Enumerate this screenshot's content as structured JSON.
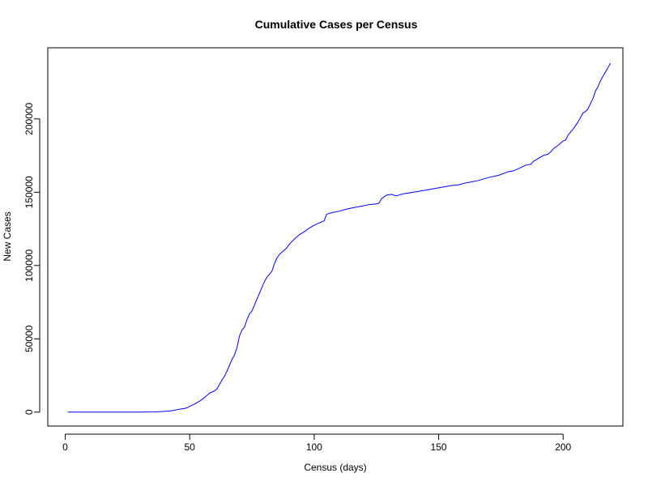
{
  "chart_data": {
    "type": "line",
    "title": "Cumulative Cases per Census",
    "xlabel": "Census (days)",
    "ylabel": "New Cases",
    "xlim": [
      -7,
      224
    ],
    "ylim": [
      -9500,
      248500
    ],
    "x_ticks": [
      0,
      50,
      100,
      150,
      200
    ],
    "x_tick_labels": [
      "0",
      "50",
      "100",
      "150",
      "200"
    ],
    "y_ticks": [
      0,
      50000,
      100000,
      150000,
      200000
    ],
    "y_tick_labels": [
      "0",
      "50000",
      "100000",
      "150000",
      "200000"
    ],
    "grid": false,
    "series": [
      {
        "color": "#0000ff",
        "points": [
          [
            1,
            0
          ],
          [
            10,
            0
          ],
          [
            20,
            0
          ],
          [
            30,
            0
          ],
          [
            36,
            200
          ],
          [
            40,
            500
          ],
          [
            43,
            1000
          ],
          [
            46,
            2000
          ],
          [
            48,
            2500
          ],
          [
            49,
            3000
          ],
          [
            50,
            4000
          ],
          [
            52,
            5500
          ],
          [
            54,
            7500
          ],
          [
            56,
            10000
          ],
          [
            58,
            13000
          ],
          [
            60,
            14500
          ],
          [
            61,
            16000
          ],
          [
            62,
            19000
          ],
          [
            63,
            22000
          ],
          [
            64,
            24500
          ],
          [
            65,
            28000
          ],
          [
            66,
            32000
          ],
          [
            67,
            36000
          ],
          [
            68,
            39000
          ],
          [
            69,
            44000
          ],
          [
            70,
            52000
          ],
          [
            71,
            56000
          ],
          [
            72,
            58000
          ],
          [
            73,
            63000
          ],
          [
            74,
            67000
          ],
          [
            75,
            69000
          ],
          [
            76,
            73000
          ],
          [
            77,
            77000
          ],
          [
            78,
            81000
          ],
          [
            79,
            85000
          ],
          [
            80,
            89000
          ],
          [
            81,
            92000
          ],
          [
            82,
            94000
          ],
          [
            83,
            96000
          ],
          [
            84,
            101000
          ],
          [
            85,
            105000
          ],
          [
            86,
            107500
          ],
          [
            87,
            109000
          ],
          [
            88,
            110500
          ],
          [
            89,
            112000
          ],
          [
            90,
            114500
          ],
          [
            92,
            118000
          ],
          [
            94,
            121000
          ],
          [
            96,
            123000
          ],
          [
            98,
            125500
          ],
          [
            100,
            127500
          ],
          [
            102,
            129000
          ],
          [
            104,
            130500
          ],
          [
            105,
            135000
          ],
          [
            107,
            136000
          ],
          [
            110,
            137000
          ],
          [
            113,
            138500
          ],
          [
            116,
            139500
          ],
          [
            119,
            140500
          ],
          [
            122,
            141500
          ],
          [
            125,
            142000
          ],
          [
            126,
            142500
          ],
          [
            127,
            145500
          ],
          [
            129,
            148000
          ],
          [
            131,
            148500
          ],
          [
            133,
            147500
          ],
          [
            136,
            149000
          ],
          [
            140,
            150000
          ],
          [
            145,
            151500
          ],
          [
            150,
            153000
          ],
          [
            155,
            154500
          ],
          [
            158,
            155000
          ],
          [
            160,
            156000
          ],
          [
            163,
            157000
          ],
          [
            166,
            158000
          ],
          [
            170,
            160000
          ],
          [
            174,
            161500
          ],
          [
            178,
            164000
          ],
          [
            180,
            164500
          ],
          [
            182,
            166000
          ],
          [
            185,
            168500
          ],
          [
            187,
            169000
          ],
          [
            188,
            171000
          ],
          [
            190,
            173000
          ],
          [
            192,
            175000
          ],
          [
            194,
            176000
          ],
          [
            195,
            177500
          ],
          [
            196,
            179500
          ],
          [
            198,
            182000
          ],
          [
            200,
            185000
          ],
          [
            201,
            185500
          ],
          [
            202,
            189000
          ],
          [
            204,
            193000
          ],
          [
            206,
            198000
          ],
          [
            208,
            204000
          ],
          [
            209,
            205000
          ],
          [
            210,
            207000
          ],
          [
            212,
            214000
          ],
          [
            213,
            219000
          ],
          [
            214,
            222000
          ],
          [
            215,
            226000
          ],
          [
            216,
            229000
          ],
          [
            217,
            232000
          ],
          [
            218,
            235000
          ],
          [
            219,
            238000
          ]
        ]
      }
    ]
  }
}
